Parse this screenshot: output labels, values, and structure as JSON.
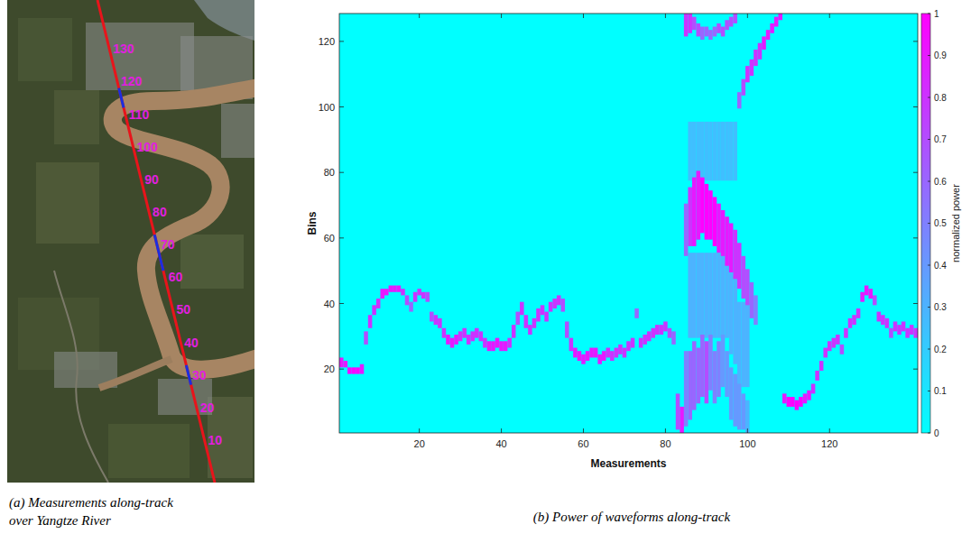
{
  "chart_data": [
    {
      "type": "map",
      "caption": "(a) Measurements along-track over Yangtze River",
      "color": "#e8141b",
      "xlim": [
        -3,
        145
      ],
      "track_labels": [
        10,
        20,
        30,
        40,
        50,
        60,
        70,
        80,
        90,
        100,
        110,
        120,
        130
      ],
      "water_segments": [
        [
          27,
          33
        ],
        [
          62,
          73
        ],
        [
          112,
          118
        ]
      ]
    },
    {
      "type": "heatmap",
      "caption": "(b) Power of waveforms along-track",
      "xlabel": "Measurements",
      "ylabel": "Bins",
      "xlim": [
        0.5,
        141.5
      ],
      "ylim": [
        0.5,
        128.5
      ],
      "xticks": [
        20,
        40,
        60,
        80,
        100,
        120
      ],
      "yticks": [
        20,
        40,
        60,
        80,
        100,
        120
      ],
      "colorbar": {
        "label": "normalized power",
        "range": [
          0,
          1
        ],
        "ticks": [
          0,
          0.1,
          0.2,
          0.3,
          0.4,
          0.5,
          0.6,
          0.7,
          0.8,
          0.9,
          1
        ]
      },
      "cells": [
        [
          1,
          21,
          23,
          0.9
        ],
        [
          2,
          21,
          22,
          0.9
        ],
        [
          3,
          19,
          20,
          1
        ],
        [
          4,
          19,
          20,
          1
        ],
        [
          5,
          19,
          20,
          1
        ],
        [
          6,
          19,
          21,
          0.9
        ],
        [
          7,
          28,
          31,
          0.7
        ],
        [
          8,
          33,
          36,
          0.8
        ],
        [
          9,
          37,
          39,
          0.8
        ],
        [
          10,
          39,
          41,
          0.8
        ],
        [
          11,
          42,
          44,
          0.9
        ],
        [
          12,
          43,
          44,
          0.9
        ],
        [
          13,
          44,
          45,
          0.9
        ],
        [
          14,
          44,
          45,
          0.9
        ],
        [
          15,
          44,
          45,
          0.9
        ],
        [
          16,
          43,
          44,
          0.8
        ],
        [
          17,
          40,
          42,
          0.7
        ],
        [
          18,
          38,
          40,
          0.6
        ],
        [
          19,
          41,
          43,
          0.8
        ],
        [
          20,
          43,
          44,
          0.8
        ],
        [
          21,
          42,
          43,
          0.8
        ],
        [
          22,
          41,
          43,
          0.7
        ],
        [
          23,
          35,
          37,
          0.7
        ],
        [
          24,
          34,
          36,
          0.8
        ],
        [
          25,
          33,
          35,
          0.8
        ],
        [
          26,
          30,
          32,
          0.8
        ],
        [
          27,
          28,
          30,
          0.9
        ],
        [
          28,
          27,
          29,
          0.9
        ],
        [
          29,
          28,
          30,
          0.9
        ],
        [
          30,
          29,
          31,
          0.8
        ],
        [
          31,
          30,
          32,
          0.8
        ],
        [
          32,
          28,
          30,
          0.8
        ],
        [
          33,
          29,
          31,
          0.8
        ],
        [
          34,
          30,
          32,
          0.8
        ],
        [
          35,
          29,
          31,
          0.8
        ],
        [
          36,
          27,
          29,
          0.8
        ],
        [
          37,
          26,
          28,
          0.9
        ],
        [
          38,
          26,
          28,
          0.9
        ],
        [
          39,
          27,
          29,
          0.9
        ],
        [
          40,
          26,
          28,
          0.9
        ],
        [
          41,
          26,
          28,
          0.9
        ],
        [
          42,
          27,
          29,
          0.8
        ],
        [
          43,
          30,
          33,
          0.8
        ],
        [
          44,
          34,
          37,
          0.7
        ],
        [
          45,
          37,
          40,
          0.8
        ],
        [
          46,
          33,
          36,
          0.8
        ],
        [
          47,
          31,
          33,
          0.8
        ],
        [
          48,
          33,
          35,
          0.8
        ],
        [
          49,
          35,
          38,
          0.8
        ],
        [
          50,
          37,
          39,
          0.8
        ],
        [
          51,
          35,
          37,
          0.8
        ],
        [
          52,
          38,
          40,
          0.8
        ],
        [
          53,
          39,
          41,
          0.8
        ],
        [
          54,
          40,
          42,
          0.8
        ],
        [
          55,
          38,
          41,
          0.7
        ],
        [
          56,
          30,
          34,
          0.7
        ],
        [
          57,
          26,
          29,
          0.8
        ],
        [
          58,
          24,
          26,
          0.9
        ],
        [
          59,
          23,
          25,
          0.9
        ],
        [
          60,
          22,
          24,
          0.9
        ],
        [
          61,
          23,
          25,
          0.9
        ],
        [
          62,
          24,
          26,
          0.9
        ],
        [
          63,
          24,
          26,
          0.9
        ],
        [
          64,
          22,
          24,
          0.9
        ],
        [
          65,
          23,
          25,
          0.9
        ],
        [
          66,
          24,
          26,
          0.8
        ],
        [
          67,
          23,
          25,
          0.8
        ],
        [
          68,
          24,
          26,
          0.8
        ],
        [
          69,
          25,
          27,
          0.8
        ],
        [
          70,
          24,
          26,
          0.8
        ],
        [
          71,
          26,
          28,
          0.8
        ],
        [
          72,
          27,
          29,
          0.8
        ],
        [
          73,
          36,
          38,
          0.6
        ],
        [
          74,
          27,
          29,
          0.8
        ],
        [
          75,
          28,
          30,
          0.8
        ],
        [
          76,
          29,
          31,
          0.8
        ],
        [
          77,
          30,
          32,
          0.8
        ],
        [
          78,
          31,
          33,
          0.8
        ],
        [
          79,
          31,
          33,
          0.8
        ],
        [
          80,
          32,
          34,
          0.8
        ],
        [
          81,
          30,
          32,
          0.7
        ],
        [
          82,
          28,
          31,
          0.6
        ],
        [
          83,
          2,
          12,
          0.7
        ],
        [
          84,
          1,
          8,
          0.9
        ],
        [
          85,
          3,
          25,
          0.5
        ],
        [
          85,
          55,
          70,
          0.6
        ],
        [
          85,
          122,
          128,
          0.8
        ],
        [
          86,
          30,
          55,
          0.3
        ],
        [
          86,
          78,
          95,
          0.25
        ],
        [
          86,
          5,
          25,
          0.6
        ],
        [
          86,
          58,
          75,
          0.8
        ],
        [
          86,
          123,
          128,
          0.8
        ],
        [
          87,
          30,
          55,
          0.3
        ],
        [
          87,
          78,
          95,
          0.25
        ],
        [
          87,
          8,
          28,
          0.6
        ],
        [
          87,
          58,
          78,
          0.9
        ],
        [
          87,
          124,
          127,
          0.7
        ],
        [
          88,
          30,
          55,
          0.3
        ],
        [
          88,
          78,
          95,
          0.25
        ],
        [
          88,
          10,
          26,
          0.6
        ],
        [
          88,
          60,
          80,
          0.9
        ],
        [
          88,
          122,
          125,
          0.7
        ],
        [
          89,
          30,
          55,
          0.3
        ],
        [
          89,
          78,
          95,
          0.25
        ],
        [
          89,
          12,
          30,
          0.6
        ],
        [
          89,
          62,
          78,
          1
        ],
        [
          89,
          121,
          124,
          0.6
        ],
        [
          90,
          30,
          55,
          0.3
        ],
        [
          90,
          78,
          95,
          0.25
        ],
        [
          90,
          10,
          28,
          0.7
        ],
        [
          90,
          60,
          76,
          1
        ],
        [
          90,
          122,
          124,
          0.6
        ],
        [
          91,
          30,
          55,
          0.3
        ],
        [
          91,
          78,
          95,
          0.25
        ],
        [
          91,
          14,
          30,
          0.5
        ],
        [
          91,
          60,
          74,
          1
        ],
        [
          91,
          121,
          123,
          0.6
        ],
        [
          92,
          30,
          55,
          0.3
        ],
        [
          92,
          78,
          95,
          0.25
        ],
        [
          92,
          10,
          25,
          0.5
        ],
        [
          92,
          58,
          72,
          1
        ],
        [
          92,
          122,
          124,
          0.6
        ],
        [
          93,
          30,
          55,
          0.3
        ],
        [
          93,
          78,
          95,
          0.25
        ],
        [
          93,
          12,
          28,
          0.5
        ],
        [
          93,
          56,
          70,
          0.9
        ],
        [
          93,
          123,
          125,
          0.7
        ],
        [
          94,
          30,
          55,
          0.3
        ],
        [
          94,
          78,
          95,
          0.25
        ],
        [
          94,
          15,
          30,
          0.4
        ],
        [
          94,
          55,
          68,
          0.9
        ],
        [
          94,
          122,
          124,
          0.7
        ],
        [
          95,
          30,
          52,
          0.3
        ],
        [
          95,
          78,
          95,
          0.25
        ],
        [
          95,
          12,
          25,
          0.4
        ],
        [
          95,
          52,
          66,
          0.9
        ],
        [
          95,
          124,
          126,
          0.7
        ],
        [
          96,
          25,
          50,
          0.3
        ],
        [
          96,
          78,
          95,
          0.25
        ],
        [
          96,
          5,
          20,
          0.4
        ],
        [
          96,
          50,
          64,
          0.9
        ],
        [
          96,
          125,
          127,
          0.7
        ],
        [
          97,
          22,
          48,
          0.3
        ],
        [
          97,
          78,
          95,
          0.25
        ],
        [
          97,
          3,
          18,
          0.4
        ],
        [
          97,
          48,
          62,
          0.8
        ],
        [
          97,
          126,
          128,
          0.7
        ],
        [
          98,
          15,
          40,
          0.3
        ],
        [
          98,
          2,
          15,
          0.4
        ],
        [
          98,
          45,
          58,
          0.8
        ],
        [
          98,
          100,
          104,
          0.6
        ],
        [
          99,
          15,
          40,
          0.3
        ],
        [
          99,
          2,
          12,
          0.4
        ],
        [
          99,
          42,
          54,
          0.7
        ],
        [
          99,
          104,
          108,
          0.7
        ],
        [
          100,
          15,
          40,
          0.3
        ],
        [
          100,
          1,
          10,
          0.3
        ],
        [
          100,
          40,
          50,
          0.7
        ],
        [
          100,
          108,
          112,
          0.8
        ],
        [
          101,
          36,
          46,
          0.6
        ],
        [
          101,
          110,
          114,
          0.8
        ],
        [
          102,
          34,
          42,
          0.5
        ],
        [
          102,
          113,
          117,
          0.8
        ],
        [
          103,
          115,
          119,
          0.8
        ],
        [
          104,
          118,
          121,
          0.9
        ],
        [
          105,
          121,
          123,
          0.9
        ],
        [
          106,
          123,
          125,
          0.9
        ],
        [
          107,
          125,
          127,
          0.9
        ],
        [
          108,
          127,
          128,
          0.9
        ],
        [
          109,
          10,
          12,
          0.9
        ],
        [
          110,
          9,
          11,
          1
        ],
        [
          111,
          9,
          11,
          1
        ],
        [
          112,
          8,
          10,
          1
        ],
        [
          113,
          9,
          11,
          1
        ],
        [
          114,
          10,
          12,
          0.9
        ],
        [
          115,
          11,
          13,
          0.9
        ],
        [
          116,
          13,
          15,
          0.8
        ],
        [
          117,
          17,
          19,
          0.8
        ],
        [
          118,
          20,
          22,
          0.8
        ],
        [
          119,
          24,
          26,
          0.8
        ],
        [
          120,
          26,
          28,
          0.8
        ],
        [
          121,
          27,
          29,
          0.8
        ],
        [
          122,
          28,
          30,
          0.8
        ],
        [
          123,
          25,
          27,
          0.7
        ],
        [
          124,
          30,
          32,
          0.8
        ],
        [
          125,
          33,
          35,
          0.8
        ],
        [
          126,
          34,
          36,
          0.8
        ],
        [
          127,
          36,
          38,
          0.8
        ],
        [
          128,
          41,
          43,
          0.9
        ],
        [
          129,
          43,
          45,
          0.9
        ],
        [
          130,
          42,
          44,
          0.9
        ],
        [
          131,
          40,
          42,
          0.7
        ],
        [
          132,
          35,
          37,
          0.8
        ],
        [
          133,
          34,
          36,
          0.8
        ],
        [
          134,
          33,
          35,
          0.8
        ],
        [
          135,
          30,
          32,
          0.7
        ],
        [
          136,
          32,
          34,
          0.8
        ],
        [
          137,
          31,
          33,
          0.8
        ],
        [
          138,
          32,
          34,
          0.8
        ],
        [
          139,
          30,
          32,
          0.8
        ],
        [
          140,
          31,
          33,
          0.8
        ],
        [
          141,
          30,
          32,
          0.8
        ]
      ]
    }
  ]
}
